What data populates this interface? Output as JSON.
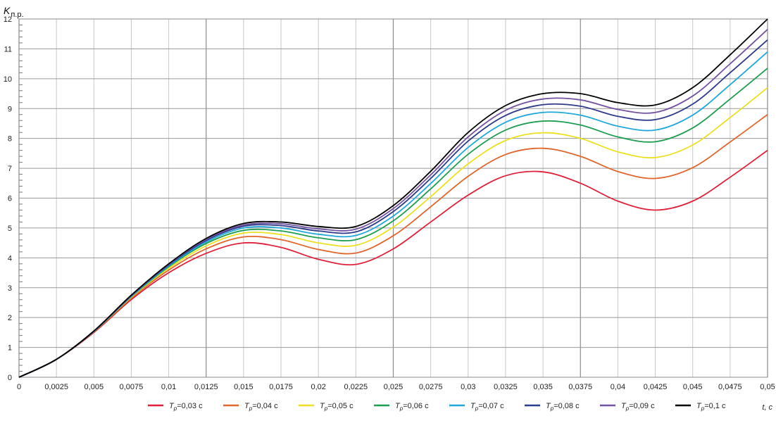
{
  "chart_data": {
    "type": "line",
    "title": "",
    "ylabel": {
      "symbol": "K",
      "sub": "п.р."
    },
    "xlabel": "t, с",
    "xlim": [
      0,
      0.05
    ],
    "ylim": [
      0,
      12
    ],
    "grid": true,
    "legend_position": "bottom",
    "x_ticks": [
      "0",
      "0,0025",
      "0,005",
      "0,0075",
      "0,01",
      "0,0125",
      "0,015",
      "0,0175",
      "0,02",
      "0,0225",
      "0,025",
      "0,0275",
      "0,03",
      "0,0325",
      "0,035",
      "0,0375",
      "0,04",
      "0,0425",
      "0,045",
      "0,0475",
      "0,05"
    ],
    "y_ticks": [
      "0",
      "1",
      "2",
      "3",
      "4",
      "5",
      "6",
      "7",
      "8",
      "9",
      "10",
      "11",
      "12"
    ],
    "x": [
      0,
      0.0025,
      0.005,
      0.0075,
      0.01,
      0.0125,
      0.015,
      0.0175,
      0.02,
      0.0225,
      0.025,
      0.0275,
      0.03,
      0.0325,
      0.035,
      0.0375,
      0.04,
      0.0425,
      0.045,
      0.0475,
      0.05
    ],
    "series": [
      {
        "name": "Tр=0,03 с",
        "sym": "T",
        "sub": "р",
        "val": "=0,03 с",
        "color": "#e0203a",
        "values": [
          0,
          0.6,
          1.5,
          2.6,
          3.5,
          4.15,
          4.5,
          4.35,
          3.95,
          3.78,
          4.3,
          5.2,
          6.1,
          6.75,
          6.88,
          6.5,
          5.9,
          5.6,
          5.9,
          6.7,
          7.6
        ]
      },
      {
        "name": "Tр=0,04 с",
        "sym": "T",
        "sub": "р",
        "val": "=0,04 с",
        "color": "#e0662c",
        "values": [
          0,
          0.6,
          1.52,
          2.65,
          3.59,
          4.3,
          4.7,
          4.61,
          4.28,
          4.16,
          4.74,
          5.71,
          6.73,
          7.46,
          7.67,
          7.4,
          6.89,
          6.66,
          7.02,
          7.88,
          8.8
        ]
      },
      {
        "name": "Tр=0,05 с",
        "sym": "T",
        "sub": "р",
        "val": "=0,05 с",
        "color": "#ece020",
        "values": [
          0,
          0.6,
          1.53,
          2.68,
          3.65,
          4.4,
          4.83,
          4.78,
          4.5,
          4.42,
          5.03,
          6.05,
          7.15,
          7.93,
          8.19,
          8.0,
          7.55,
          7.36,
          7.78,
          8.7,
          9.7
        ]
      },
      {
        "name": "Tр=0,06 с",
        "sym": "T",
        "sub": "р",
        "val": "=0,06 с",
        "color": "#1f9e52",
        "values": [
          0,
          0.6,
          1.53,
          2.7,
          3.7,
          4.48,
          4.92,
          4.9,
          4.67,
          4.61,
          5.24,
          6.31,
          7.47,
          8.28,
          8.58,
          8.45,
          8.05,
          7.89,
          8.35,
          9.32,
          10.35
        ]
      },
      {
        "name": "Tр=0,07 с",
        "sym": "T",
        "sub": "р",
        "val": "=0,07 с",
        "color": "#20a8dc",
        "values": [
          0,
          0.6,
          1.54,
          2.71,
          3.73,
          4.53,
          5.0,
          5.0,
          4.79,
          4.75,
          5.4,
          6.49,
          7.7,
          8.54,
          8.87,
          8.78,
          8.41,
          8.28,
          8.78,
          9.8,
          10.9
        ]
      },
      {
        "name": "Tр=0,08 с",
        "sym": "T",
        "sub": "р",
        "val": "=0,08 с",
        "color": "#2e3a8a",
        "values": [
          0,
          0.6,
          1.54,
          2.73,
          3.76,
          4.58,
          5.06,
          5.08,
          4.9,
          4.87,
          5.55,
          6.66,
          7.91,
          8.77,
          9.13,
          9.08,
          8.74,
          8.63,
          9.15,
          10.2,
          11.3
        ]
      },
      {
        "name": "Tр=0,09 с",
        "sym": "T",
        "sub": "р",
        "val": "=0,09 с",
        "color": "#7452a2",
        "values": [
          0,
          0.6,
          1.55,
          2.74,
          3.78,
          4.62,
          5.1,
          5.14,
          4.97,
          4.96,
          5.65,
          6.78,
          8.05,
          8.94,
          9.32,
          9.29,
          8.97,
          8.87,
          9.42,
          10.5,
          11.65
        ]
      },
      {
        "name": "Tр=0,1 с",
        "sym": "T",
        "sub": "р",
        "val": "=0,1 с",
        "color": "#000000",
        "values": [
          0,
          0.6,
          1.55,
          2.75,
          3.8,
          4.65,
          5.15,
          5.2,
          5.05,
          5.05,
          5.75,
          6.9,
          8.2,
          9.1,
          9.5,
          9.5,
          9.2,
          9.12,
          9.7,
          10.8,
          12.0
        ]
      }
    ]
  }
}
